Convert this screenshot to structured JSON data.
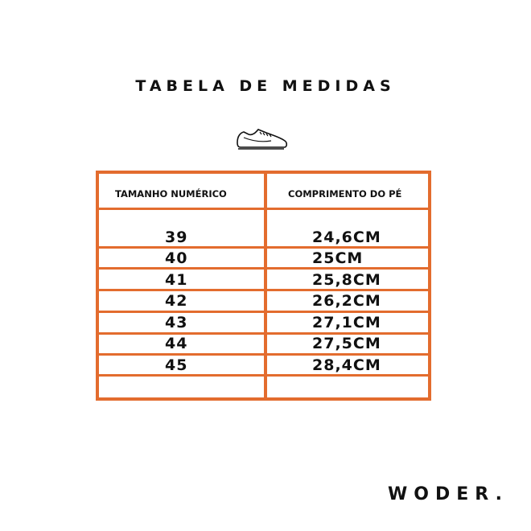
{
  "title": "TABELA DE MEDIDAS",
  "icon": "sneaker-icon",
  "accent_color": "#E36C2E",
  "table": {
    "headers": [
      "TAMANHO NUMÉRICO",
      "COMPRIMENTO DO PÉ"
    ],
    "rows": [
      {
        "size": "39",
        "length": "24,6CM"
      },
      {
        "size": "40",
        "length": "25CM"
      },
      {
        "size": "41",
        "length": "25,8CM"
      },
      {
        "size": "42",
        "length": "26,2CM"
      },
      {
        "size": "43",
        "length": "27,1CM"
      },
      {
        "size": "44",
        "length": "27,5CM"
      },
      {
        "size": "45",
        "length": "28,4CM"
      }
    ]
  },
  "brand": "WODER."
}
